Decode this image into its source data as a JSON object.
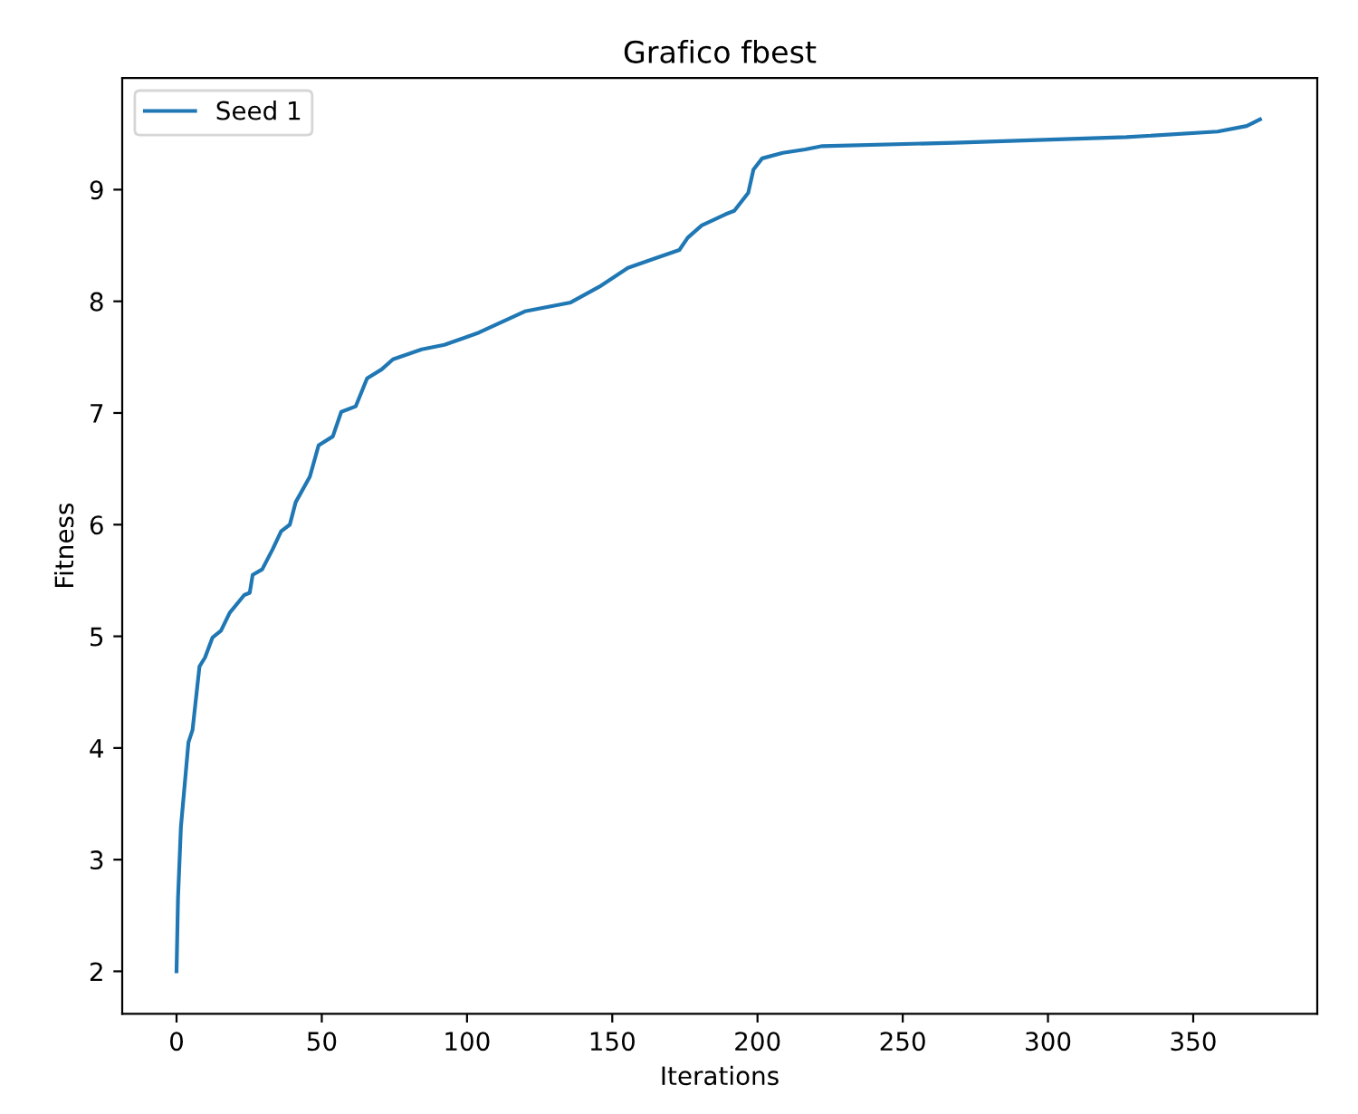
{
  "chart_data": {
    "type": "line",
    "title": "Grafico fbest",
    "xlabel": "Iterations",
    "ylabel": "Fitness",
    "series": [
      {
        "name": "Seed 1",
        "color": "#1f77b4",
        "x": [
          0,
          0.5,
          1.5,
          4.1,
          5.5,
          7.9,
          9.8,
          12.4,
          15.3,
          18.3,
          23.3,
          25.2,
          26.2,
          29.5,
          33.1,
          36,
          39,
          41,
          45.9,
          48.9,
          53.8,
          56.7,
          61.7,
          65.6,
          70.6,
          74.5,
          84.4,
          92.2,
          104.1,
          119.9,
          135.7,
          145.5,
          155.4,
          164.3,
          173.1,
          176,
          180.8,
          189,
          192,
          196.8,
          198.6,
          201.6,
          208.7,
          216.4,
          222.3,
          267.8,
          327,
          358.4,
          368.4,
          373
        ],
        "values": [
          2.0,
          2.65,
          3.29,
          4.05,
          4.16,
          4.73,
          4.81,
          4.99,
          5.05,
          5.21,
          5.37,
          5.39,
          5.55,
          5.6,
          5.78,
          5.94,
          6.0,
          6.2,
          6.43,
          6.71,
          6.79,
          7.01,
          7.06,
          7.31,
          7.39,
          7.48,
          7.57,
          7.61,
          7.72,
          7.91,
          7.99,
          8.13,
          8.3,
          8.38,
          8.46,
          8.57,
          8.68,
          8.78,
          8.81,
          8.97,
          9.18,
          9.28,
          9.33,
          9.36,
          9.39,
          9.42,
          9.47,
          9.52,
          9.57,
          9.63
        ]
      }
    ],
    "xlim": [
      -18.7,
      392.7
    ],
    "xticks": [
      0,
      50,
      100,
      150,
      200,
      250,
      300,
      350
    ],
    "ylim": [
      1.62,
      10.0
    ],
    "yticks": [
      2,
      3,
      4,
      5,
      6,
      7,
      8,
      9
    ],
    "legend": "top left",
    "grid": false,
    "marker": "none",
    "line_style": "solid"
  }
}
